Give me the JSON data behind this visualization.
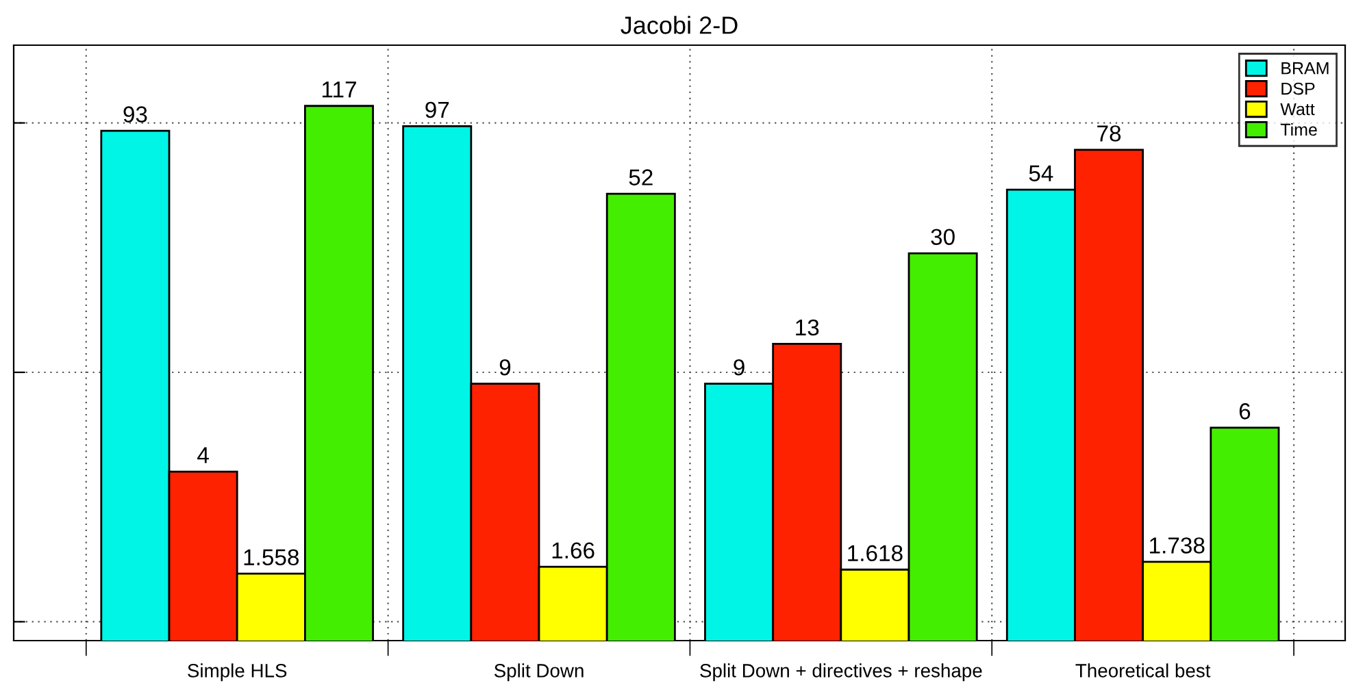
{
  "chart_data": {
    "type": "bar",
    "title": "Jacobi 2-D",
    "categories": [
      "Simple HLS",
      "Split Down",
      "Split Down + directives + reshape",
      "Theoretical best"
    ],
    "series": [
      {
        "name": "BRAM",
        "color": "#00f5e6",
        "values": [
          93,
          97,
          9,
          54
        ]
      },
      {
        "name": "DSP",
        "color": "#ff2200",
        "values": [
          4,
          9,
          13,
          78
        ]
      },
      {
        "name": "Watt",
        "color": "#ffff00",
        "values": [
          1.558,
          1.66,
          1.618,
          1.738
        ]
      },
      {
        "name": "Time",
        "color": "#44ee00",
        "values": [
          117,
          52,
          30,
          6
        ]
      }
    ],
    "log": "y",
    "ylim": [
      0.84,
      205
    ],
    "yticks": [
      {
        "value": 1,
        "label": null
      },
      {
        "value": 10,
        "label": null
      },
      {
        "value": 100,
        "label": null
      }
    ],
    "tick_labels": "x",
    "data_labels": true,
    "grid": true,
    "legend": "top right"
  }
}
